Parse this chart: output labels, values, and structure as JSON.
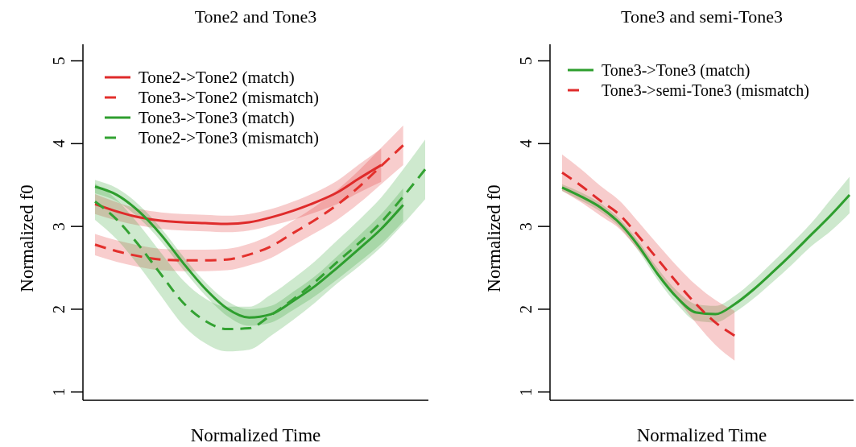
{
  "chart_data": [
    {
      "type": "line",
      "title": "Tone2 and Tone3",
      "xlabel": "Normalized Time",
      "ylabel": "Normalized f0",
      "categories": [
        null,
        null,
        null,
        null,
        null,
        null,
        null,
        null,
        null,
        null,
        null,
        null,
        null,
        null,
        null,
        null
      ],
      "ylim": [
        0.9,
        5.2
      ],
      "yticks": [
        1,
        2,
        3,
        4,
        5
      ],
      "tick_labels": "y",
      "legend": "top left",
      "grid": false,
      "series": [
        {
          "name": "Tone2->Tone2 (match)",
          "color": "#df2b2b",
          "line_style": "solid",
          "values": [
            3.27,
            3.18,
            3.11,
            3.07,
            3.05,
            3.04,
            3.03,
            3.05,
            3.11,
            3.19,
            3.29,
            3.41,
            3.58,
            3.74,
            null,
            null
          ],
          "lower": [
            3.15,
            3.07,
            3.01,
            2.97,
            2.95,
            2.94,
            2.93,
            2.95,
            3.01,
            3.08,
            3.17,
            3.27,
            3.41,
            3.54,
            null,
            null
          ],
          "upper": [
            3.39,
            3.29,
            3.21,
            3.17,
            3.15,
            3.14,
            3.13,
            3.15,
            3.21,
            3.3,
            3.41,
            3.55,
            3.75,
            3.94,
            null,
            null
          ]
        },
        {
          "name": "Tone3->Tone2 (mismatch)",
          "color": "#e3302c",
          "line_style": "dashed",
          "values": [
            2.78,
            2.7,
            2.64,
            2.6,
            2.59,
            2.59,
            2.6,
            2.66,
            2.76,
            2.92,
            3.08,
            3.26,
            3.48,
            3.73,
            3.98,
            null
          ],
          "lower": [
            2.65,
            2.57,
            2.51,
            2.47,
            2.46,
            2.46,
            2.47,
            2.53,
            2.62,
            2.77,
            2.92,
            3.08,
            3.28,
            3.51,
            3.74,
            null
          ],
          "upper": [
            2.91,
            2.83,
            2.77,
            2.73,
            2.72,
            2.72,
            2.73,
            2.79,
            2.9,
            3.07,
            3.24,
            3.44,
            3.68,
            3.95,
            4.22,
            null
          ]
        },
        {
          "name": "Tone3->Tone3 (match)",
          "color": "#2e9e2e",
          "line_style": "solid",
          "values": [
            3.48,
            3.38,
            3.18,
            2.9,
            2.56,
            2.25,
            2.01,
            1.9,
            1.94,
            2.1,
            2.28,
            2.5,
            2.73,
            2.97,
            3.26,
            null
          ],
          "lower": [
            3.4,
            3.3,
            3.1,
            2.82,
            2.48,
            2.17,
            1.92,
            1.8,
            1.84,
            1.99,
            2.16,
            2.36,
            2.57,
            2.79,
            3.06,
            null
          ],
          "upper": [
            3.56,
            3.46,
            3.26,
            2.98,
            2.64,
            2.33,
            2.1,
            2.0,
            2.04,
            2.21,
            2.4,
            2.64,
            2.89,
            3.15,
            3.46,
            null
          ]
        },
        {
          "name": "Tone2->Tone3 (mismatch)",
          "color": "#33a232",
          "line_style": "dashed",
          "values": [
            3.3,
            3.08,
            2.77,
            2.42,
            2.08,
            1.86,
            1.76,
            1.77,
            1.93,
            2.12,
            2.33,
            2.57,
            2.8,
            3.05,
            3.36,
            3.69
          ],
          "lower": [
            3.08,
            2.84,
            2.52,
            2.16,
            1.81,
            1.59,
            1.49,
            1.51,
            1.68,
            1.87,
            2.08,
            2.31,
            2.52,
            2.75,
            3.03,
            3.33
          ],
          "upper": [
            3.52,
            3.32,
            3.02,
            2.68,
            2.35,
            2.13,
            2.03,
            2.03,
            2.18,
            2.37,
            2.58,
            2.83,
            3.08,
            3.35,
            3.69,
            4.05
          ]
        }
      ]
    },
    {
      "type": "line",
      "title": "Tone3 and semi-Tone3",
      "xlabel": "Normalized Time",
      "ylabel": "Normalized f0",
      "categories": [
        null,
        null,
        null,
        null,
        null,
        null,
        null,
        null,
        null,
        null,
        null,
        null,
        null,
        null,
        null,
        null
      ],
      "ylim": [
        0.9,
        5.2
      ],
      "yticks": [
        1,
        2,
        3,
        4,
        5
      ],
      "tick_labels": "y",
      "legend": "top left",
      "grid": false,
      "series": [
        {
          "name": "Tone3->Tone3 (match)",
          "color": "#2e9e2e",
          "line_style": "solid",
          "values": [
            3.47,
            3.36,
            3.23,
            3.04,
            2.76,
            2.42,
            2.14,
            1.96,
            1.94,
            2.06,
            2.24,
            2.45,
            2.67,
            2.9,
            3.13,
            3.38
          ],
          "lower": [
            3.43,
            3.31,
            3.18,
            2.99,
            2.7,
            2.35,
            2.06,
            1.86,
            1.84,
            1.96,
            2.13,
            2.33,
            2.54,
            2.76,
            2.94,
            3.16
          ],
          "upper": [
            3.51,
            3.41,
            3.28,
            3.09,
            2.82,
            2.49,
            2.22,
            2.06,
            2.04,
            2.16,
            2.35,
            2.57,
            2.8,
            3.04,
            3.32,
            3.6
          ]
        },
        {
          "name": "Tone3->semi-Tone3 (mismatch)",
          "color": "#df2b2b",
          "line_style": "dashed",
          "values": [
            3.65,
            3.49,
            3.31,
            3.14,
            2.88,
            2.6,
            2.32,
            2.06,
            1.84,
            1.68,
            null,
            null,
            null,
            null,
            null,
            null
          ],
          "lower": [
            3.43,
            3.29,
            3.13,
            2.97,
            2.71,
            2.42,
            2.12,
            1.83,
            1.57,
            1.38,
            null,
            null,
            null,
            null,
            null,
            null
          ],
          "upper": [
            3.87,
            3.69,
            3.49,
            3.31,
            3.05,
            2.78,
            2.52,
            2.29,
            2.11,
            1.98,
            null,
            null,
            null,
            null,
            null,
            null
          ]
        }
      ]
    }
  ]
}
